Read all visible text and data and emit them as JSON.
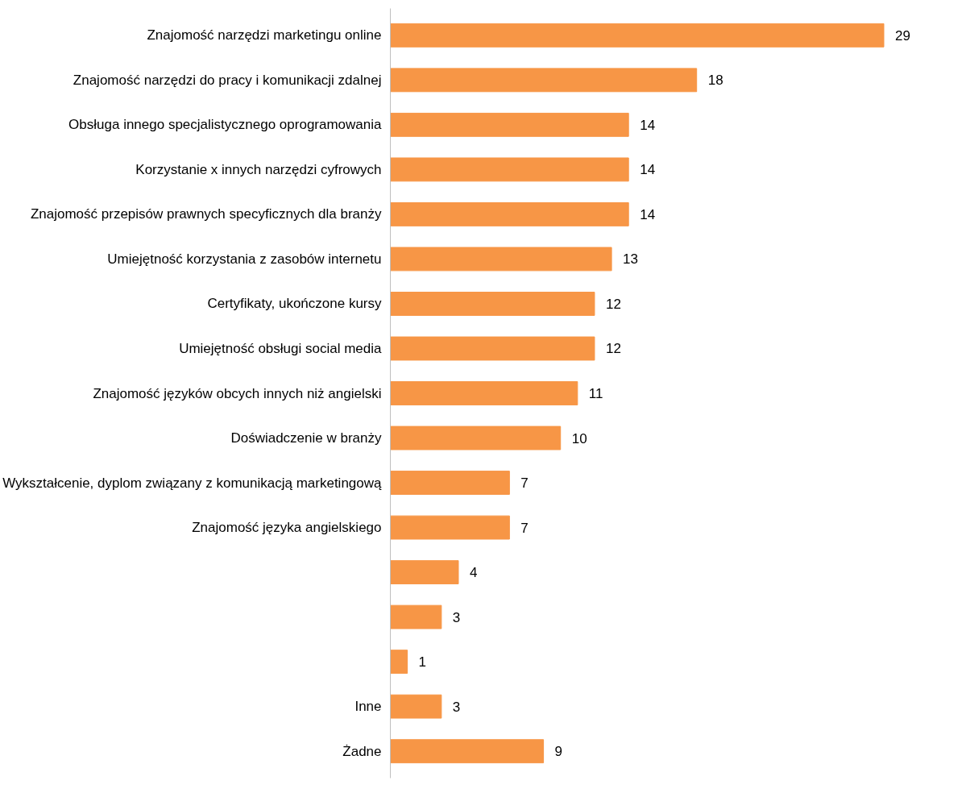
{
  "chart_data": {
    "type": "bar",
    "orientation": "horizontal",
    "color": "#f79646",
    "data_labels": true,
    "grid": false,
    "categories": [
      "Znajomość narzędzi marketingu online",
      "Znajomość narzędzi do pracy i komunikacji zdalnej",
      "Obsługa innego specjalistycznego oprogramowania",
      "Korzystanie x innych narzędzi cyfrowych",
      "Znajomość przepisów prawnych specyficznych dla branży",
      "Umiejętność korzystania z zasobów internetu",
      "Certyfikaty, ukończone kursy",
      "Umiejętność obsługi social media",
      "Znajomość języków obcych innych niż angielski",
      "Doświadczenie w branży",
      "Wykształcenie, dyplom związany z komunikacją marketingową",
      "Znajomość języka angielskiego",
      null,
      null,
      null,
      "Inne",
      "Żadne"
    ],
    "values": [
      29,
      18,
      14,
      14,
      14,
      13,
      12,
      12,
      11,
      10,
      7,
      7,
      4,
      3,
      1,
      3,
      9
    ]
  }
}
